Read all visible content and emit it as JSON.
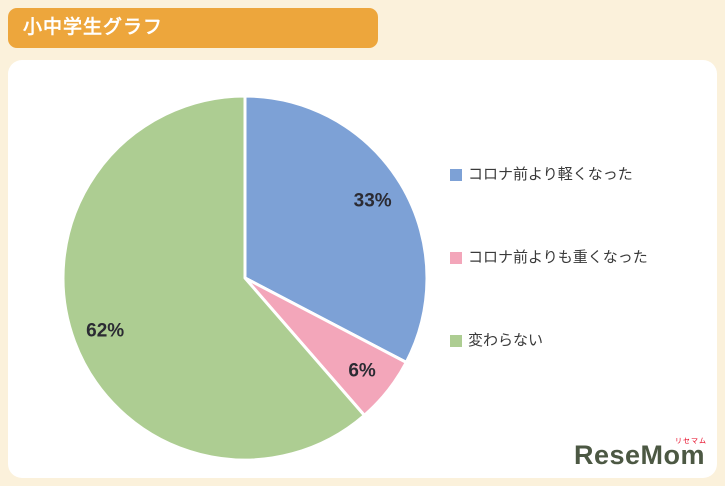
{
  "header": {
    "title": "小中学生グラフ"
  },
  "chart_data": {
    "type": "pie",
    "title": "小中学生グラフ",
    "start_angle_deg": 0,
    "direction": "clockwise",
    "legend_position": "right",
    "slices": [
      {
        "label": "コロナ前より軽くなった",
        "value": 33,
        "display": "33%",
        "color": "#7DA1D6"
      },
      {
        "label": "コロナ前よりも重くなった",
        "value": 6,
        "display": "6%",
        "color": "#F3A6BA"
      },
      {
        "label": "変わらない",
        "value": 62,
        "display": "62%",
        "color": "#ADCD92"
      }
    ],
    "colors": {
      "background": "#FBF1DB",
      "header_bar": "#EDA63C",
      "card": "#FFFFFF",
      "slice_border": "#FFFFFF",
      "label_text": "#2B2B33"
    }
  },
  "logo": {
    "text": "ReseMom",
    "subtext": "リセマム"
  }
}
